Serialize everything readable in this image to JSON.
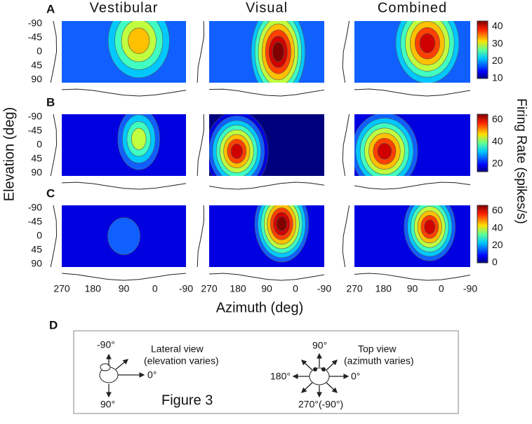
{
  "panel_labels": [
    "A",
    "B",
    "C",
    "D"
  ],
  "column_titles": [
    "Vestibular",
    "Visual",
    "Combined"
  ],
  "y_axis_label": "Elevation (deg)",
  "x_axis_label": "Azimuth (deg)",
  "elevation_ticks": [
    "-90",
    "-45",
    "0",
    "45",
    "90"
  ],
  "azimuth_ticks": [
    "270",
    "180",
    "90",
    "0",
    "-90"
  ],
  "colorbars": [
    {
      "ticks": [
        "40",
        "30",
        "20",
        "10"
      ]
    },
    {
      "ticks": [
        "60",
        "40",
        "20"
      ]
    },
    {
      "ticks": [
        "60",
        "40",
        "20",
        "0"
      ]
    }
  ],
  "colorbar_label": "Firing Rate (spikes/s)",
  "legend": {
    "lateral": {
      "up": "-90°",
      "title": "Lateral view",
      "subtitle": "(elevation varies)",
      "right": "0°",
      "down": "90°"
    },
    "top": {
      "up": "90°",
      "title": "Top view",
      "subtitle": "(azimuth varies)",
      "left": "180°",
      "right": "0°",
      "down": "270°(-90°)"
    },
    "caption": "Figure 3"
  }
}
